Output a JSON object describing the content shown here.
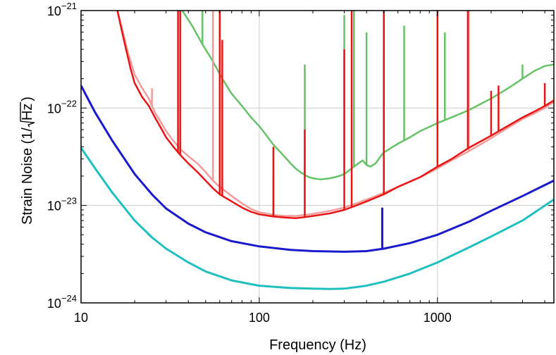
{
  "chart_data": {
    "type": "line",
    "title": "",
    "xlabel": "Frequency (Hz)",
    "ylabel_prefix": "Strain Noise (1/",
    "ylabel_radicand": "Hz",
    "ylabel_suffix": ")",
    "x_scale": "log",
    "y_scale": "log",
    "xlim": [
      10,
      4500
    ],
    "ylim": [
      1e-24,
      1e-21
    ],
    "grid": true,
    "x_ticks": [
      {
        "value": 10,
        "label": "10"
      },
      {
        "value": 100,
        "label": "100"
      },
      {
        "value": 1000,
        "label": "1000"
      }
    ],
    "y_ticks": [
      {
        "value": 1e-24,
        "base": "10",
        "exp": "−24"
      },
      {
        "value": 1e-23,
        "base": "10",
        "exp": "−23"
      },
      {
        "value": 1e-22,
        "base": "10",
        "exp": "−22"
      },
      {
        "value": 1e-21,
        "base": "10",
        "exp": "−21"
      }
    ],
    "series": [
      {
        "color": "#66c266",
        "width": 2.5,
        "x": [
          37,
          42,
          48,
          55,
          62,
          70,
          80,
          90,
          100,
          110,
          120,
          130,
          140,
          150,
          160,
          170,
          180,
          190,
          200,
          220,
          250,
          280,
          300,
          320,
          350,
          380,
          400,
          420,
          450,
          480,
          500,
          550,
          600,
          700,
          800,
          1000,
          1200,
          1500,
          2000,
          2500,
          3000,
          3500,
          4000,
          4500
        ],
        "y": [
          1e-21,
          7e-22,
          4.5e-22,
          3e-22,
          2e-22,
          1.4e-22,
          1.05e-22,
          8e-23,
          6.5e-23,
          5.2e-23,
          4.2e-23,
          3.6e-23,
          3.1e-23,
          2.7e-23,
          2.4e-23,
          2.2e-23,
          2.05e-23,
          1.95e-23,
          1.9e-23,
          1.85e-23,
          1.9e-23,
          2e-23,
          2.1e-23,
          2.3e-23,
          2.6e-23,
          2.9e-23,
          2.6e-23,
          2.5e-23,
          2.7e-23,
          3.2e-23,
          3.5e-23,
          3.9e-23,
          4.3e-23,
          5e-23,
          5.8e-23,
          7e-23,
          8e-23,
          9.5e-23,
          1.25e-22,
          1.6e-22,
          2e-22,
          2.4e-22,
          2.7e-22,
          2.8e-22
        ],
        "lines": [
          {
            "x": 48,
            "y_top": 1e-21
          },
          {
            "x": 60,
            "y_top": 1e-21
          },
          {
            "x": 180,
            "y_top": 2.8e-22
          },
          {
            "x": 300,
            "y_top": 9e-22
          },
          {
            "x": 340,
            "y_top": 1e-21
          },
          {
            "x": 400,
            "y_top": 6e-22
          },
          {
            "x": 500,
            "y_top": 4e-22
          },
          {
            "x": 650,
            "y_top": 7e-22
          },
          {
            "x": 1000,
            "y_top": 1e-21
          },
          {
            "x": 1100,
            "y_top": 6e-22
          },
          {
            "x": 3000,
            "y_top": 2.8e-22
          }
        ]
      },
      {
        "color": "#f59a9a",
        "width": 2.5,
        "x": [
          16,
          17,
          18,
          19,
          20,
          22,
          24,
          26,
          28,
          30,
          33,
          36,
          40,
          45,
          50,
          55,
          60,
          70,
          80,
          90,
          100,
          120,
          140,
          160,
          180,
          200,
          250,
          300,
          350,
          400,
          500,
          600,
          800,
          1000,
          1200,
          1500,
          2000,
          2500,
          3000,
          3500,
          4000,
          4500
        ],
        "y": [
          1e-21,
          6.5e-22,
          4.2e-22,
          3e-22,
          2.2e-22,
          1.6e-22,
          1.25e-22,
          9e-23,
          7.2e-23,
          5.8e-23,
          4.6e-23,
          3.8e-23,
          3.2e-23,
          2.7e-23,
          2.2e-23,
          1.8e-23,
          1.55e-23,
          1.25e-23,
          1.05e-23,
          9.2e-24,
          8.5e-24,
          8e-24,
          7.8e-24,
          7.8e-24,
          8e-24,
          8.2e-24,
          8.8e-24,
          9.5e-24,
          1.05e-23,
          1.15e-23,
          1.35e-23,
          1.55e-23,
          1.95e-23,
          2.4e-23,
          2.9e-23,
          3.6e-23,
          4.9e-23,
          6.3e-23,
          7.7e-23,
          8.8e-23,
          1e-22,
          1.15e-22
        ],
        "lines": [
          {
            "x": 25,
            "y_top": 1.6e-22
          },
          {
            "x": 55,
            "y_top": 1e-21
          },
          {
            "x": 60,
            "y_top": 1e-21
          },
          {
            "x": 120,
            "y_top": 2e-23
          },
          {
            "x": 180,
            "y_top": 4e-23
          },
          {
            "x": 500,
            "y_top": 1e-21
          },
          {
            "x": 1000,
            "y_top": 1e-21
          },
          {
            "x": 1500,
            "y_top": 1e-21
          }
        ]
      },
      {
        "color": "#e81515",
        "width": 2.5,
        "x": [
          16,
          17,
          18,
          19,
          20,
          22,
          24,
          26,
          28,
          30,
          33,
          36,
          40,
          45,
          50,
          55,
          60,
          70,
          80,
          90,
          100,
          120,
          140,
          160,
          180,
          200,
          250,
          300,
          350,
          400,
          500,
          600,
          800,
          1000,
          1200,
          1500,
          2000,
          2500,
          3000,
          3500,
          4000,
          4500
        ],
        "y": [
          1e-21,
          6e-22,
          3.8e-22,
          2.5e-22,
          1.8e-22,
          1.3e-22,
          1.05e-22,
          8e-23,
          6.3e-23,
          5e-23,
          4e-23,
          3.3e-23,
          2.7e-23,
          2.2e-23,
          1.8e-23,
          1.5e-23,
          1.3e-23,
          1.1e-23,
          9.5e-24,
          8.6e-24,
          8.1e-24,
          7.7e-24,
          7.5e-24,
          7.4e-24,
          7.6e-24,
          7.8e-24,
          8.3e-24,
          9e-24,
          1e-23,
          1.1e-23,
          1.3e-23,
          1.55e-23,
          1.95e-23,
          2.5e-23,
          3e-23,
          3.9e-23,
          5.2e-23,
          6.6e-23,
          8e-23,
          9.2e-23,
          1.05e-22,
          1.2e-22
        ],
        "lines": [
          {
            "x": 35,
            "y_top": 1e-21
          },
          {
            "x": 36,
            "y_top": 1e-21
          },
          {
            "x": 60,
            "y_top": 1e-21
          },
          {
            "x": 62,
            "y_top": 5e-22
          },
          {
            "x": 120,
            "y_top": 4e-23
          },
          {
            "x": 180,
            "y_top": 6e-23
          },
          {
            "x": 300,
            "y_top": 4e-22
          },
          {
            "x": 330,
            "y_top": 1e-21
          },
          {
            "x": 500,
            "y_top": 1e-21
          },
          {
            "x": 1000,
            "y_top": 1e-21
          },
          {
            "x": 1480,
            "y_top": 1e-21
          },
          {
            "x": 2000,
            "y_top": 1.5e-22
          },
          {
            "x": 2200,
            "y_top": 1.7e-22
          },
          {
            "x": 4000,
            "y_top": 1.8e-22
          }
        ]
      },
      {
        "color": "#1a1acc",
        "width": 3,
        "x": [
          10,
          12,
          15,
          20,
          25,
          30,
          40,
          50,
          70,
          100,
          150,
          200,
          300,
          400,
          500,
          700,
          1000,
          1500,
          2000,
          3000,
          4500
        ],
        "y": [
          1.7e-22,
          9e-23,
          4.6e-23,
          2.1e-23,
          1.3e-23,
          9.3e-24,
          6.5e-24,
          5.3e-24,
          4.3e-24,
          3.8e-24,
          3.5e-24,
          3.4e-24,
          3.35e-24,
          3.4e-24,
          3.6e-24,
          4.1e-24,
          5e-24,
          6.8e-24,
          8.8e-24,
          1.25e-23,
          1.8e-23
        ],
        "lines": [
          {
            "x": 490,
            "y_top": 9.5e-24
          }
        ]
      },
      {
        "color": "#1fbfbf",
        "width": 3,
        "x": [
          10,
          12,
          15,
          20,
          25,
          30,
          40,
          50,
          70,
          100,
          150,
          200,
          250,
          300,
          400,
          500,
          700,
          1000,
          1500,
          2000,
          3000,
          4500
        ],
        "y": [
          3.9e-23,
          2.4e-23,
          1.35e-23,
          7e-24,
          4.7e-24,
          3.6e-24,
          2.6e-24,
          2.1e-24,
          1.7e-24,
          1.5e-24,
          1.42e-24,
          1.4e-24,
          1.39e-24,
          1.4e-24,
          1.5e-24,
          1.65e-24,
          2e-24,
          2.6e-24,
          3.7e-24,
          4.8e-24,
          7e-24,
          1.15e-23
        ],
        "lines": []
      }
    ]
  }
}
